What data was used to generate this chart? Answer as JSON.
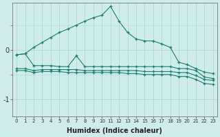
{
  "background_color": "#ceecea",
  "line_color": "#1c7c6c",
  "grid_color": "#aed8d4",
  "xlabel": "Humidex (Indice chaleur)",
  "x_ticks": [
    0,
    1,
    2,
    3,
    4,
    5,
    6,
    7,
    8,
    9,
    10,
    11,
    12,
    13,
    14,
    15,
    16,
    17,
    18,
    19,
    20,
    21,
    22,
    23
  ],
  "yticks": [
    -1,
    0
  ],
  "ylim": [
    -1.35,
    0.95
  ],
  "xlim": [
    -0.5,
    23.5
  ],
  "series": [
    {
      "x": [
        0,
        1,
        2,
        3,
        4,
        5,
        6,
        7,
        8,
        9,
        10,
        11,
        12,
        13,
        14,
        15,
        16,
        17,
        18,
        19,
        20,
        21,
        22,
        23
      ],
      "y": [
        -0.1,
        -0.08,
        0.05,
        0.15,
        0.25,
        0.35,
        0.42,
        0.5,
        0.58,
        0.65,
        0.7,
        0.88,
        0.58,
        0.35,
        0.22,
        0.18,
        0.18,
        0.12,
        0.05,
        -0.25,
        -0.3,
        -0.38,
        -0.45,
        -0.48
      ]
    },
    {
      "x": [
        0,
        1,
        2,
        3,
        4,
        5,
        6,
        7,
        8,
        9,
        10,
        11,
        12,
        13,
        14,
        15,
        16,
        17,
        18,
        19,
        20,
        21,
        22,
        23
      ],
      "y": [
        -0.1,
        -0.08,
        -0.32,
        -0.32,
        -0.32,
        -0.34,
        -0.34,
        -0.12,
        -0.34,
        -0.34,
        -0.34,
        -0.34,
        -0.34,
        -0.34,
        -0.34,
        -0.34,
        -0.34,
        -0.34,
        -0.34,
        -0.38,
        -0.38,
        -0.42,
        -0.55,
        -0.58
      ]
    },
    {
      "x": [
        0,
        1,
        2,
        3,
        4,
        5,
        6,
        7,
        8,
        9,
        10,
        11,
        12,
        13,
        14,
        15,
        16,
        17,
        18,
        19,
        20,
        21,
        22,
        23
      ],
      "y": [
        -0.38,
        -0.38,
        -0.42,
        -0.4,
        -0.4,
        -0.4,
        -0.4,
        -0.4,
        -0.42,
        -0.42,
        -0.42,
        -0.42,
        -0.42,
        -0.42,
        -0.42,
        -0.44,
        -0.44,
        -0.44,
        -0.44,
        -0.46,
        -0.46,
        -0.52,
        -0.6,
        -0.62
      ]
    },
    {
      "x": [
        0,
        1,
        2,
        3,
        4,
        5,
        6,
        7,
        8,
        9,
        10,
        11,
        12,
        13,
        14,
        15,
        16,
        17,
        18,
        19,
        20,
        21,
        22,
        23
      ],
      "y": [
        -0.42,
        -0.42,
        -0.46,
        -0.44,
        -0.44,
        -0.44,
        -0.46,
        -0.46,
        -0.46,
        -0.46,
        -0.46,
        -0.46,
        -0.46,
        -0.48,
        -0.48,
        -0.5,
        -0.5,
        -0.5,
        -0.5,
        -0.54,
        -0.54,
        -0.6,
        -0.68,
        -0.7
      ]
    }
  ]
}
